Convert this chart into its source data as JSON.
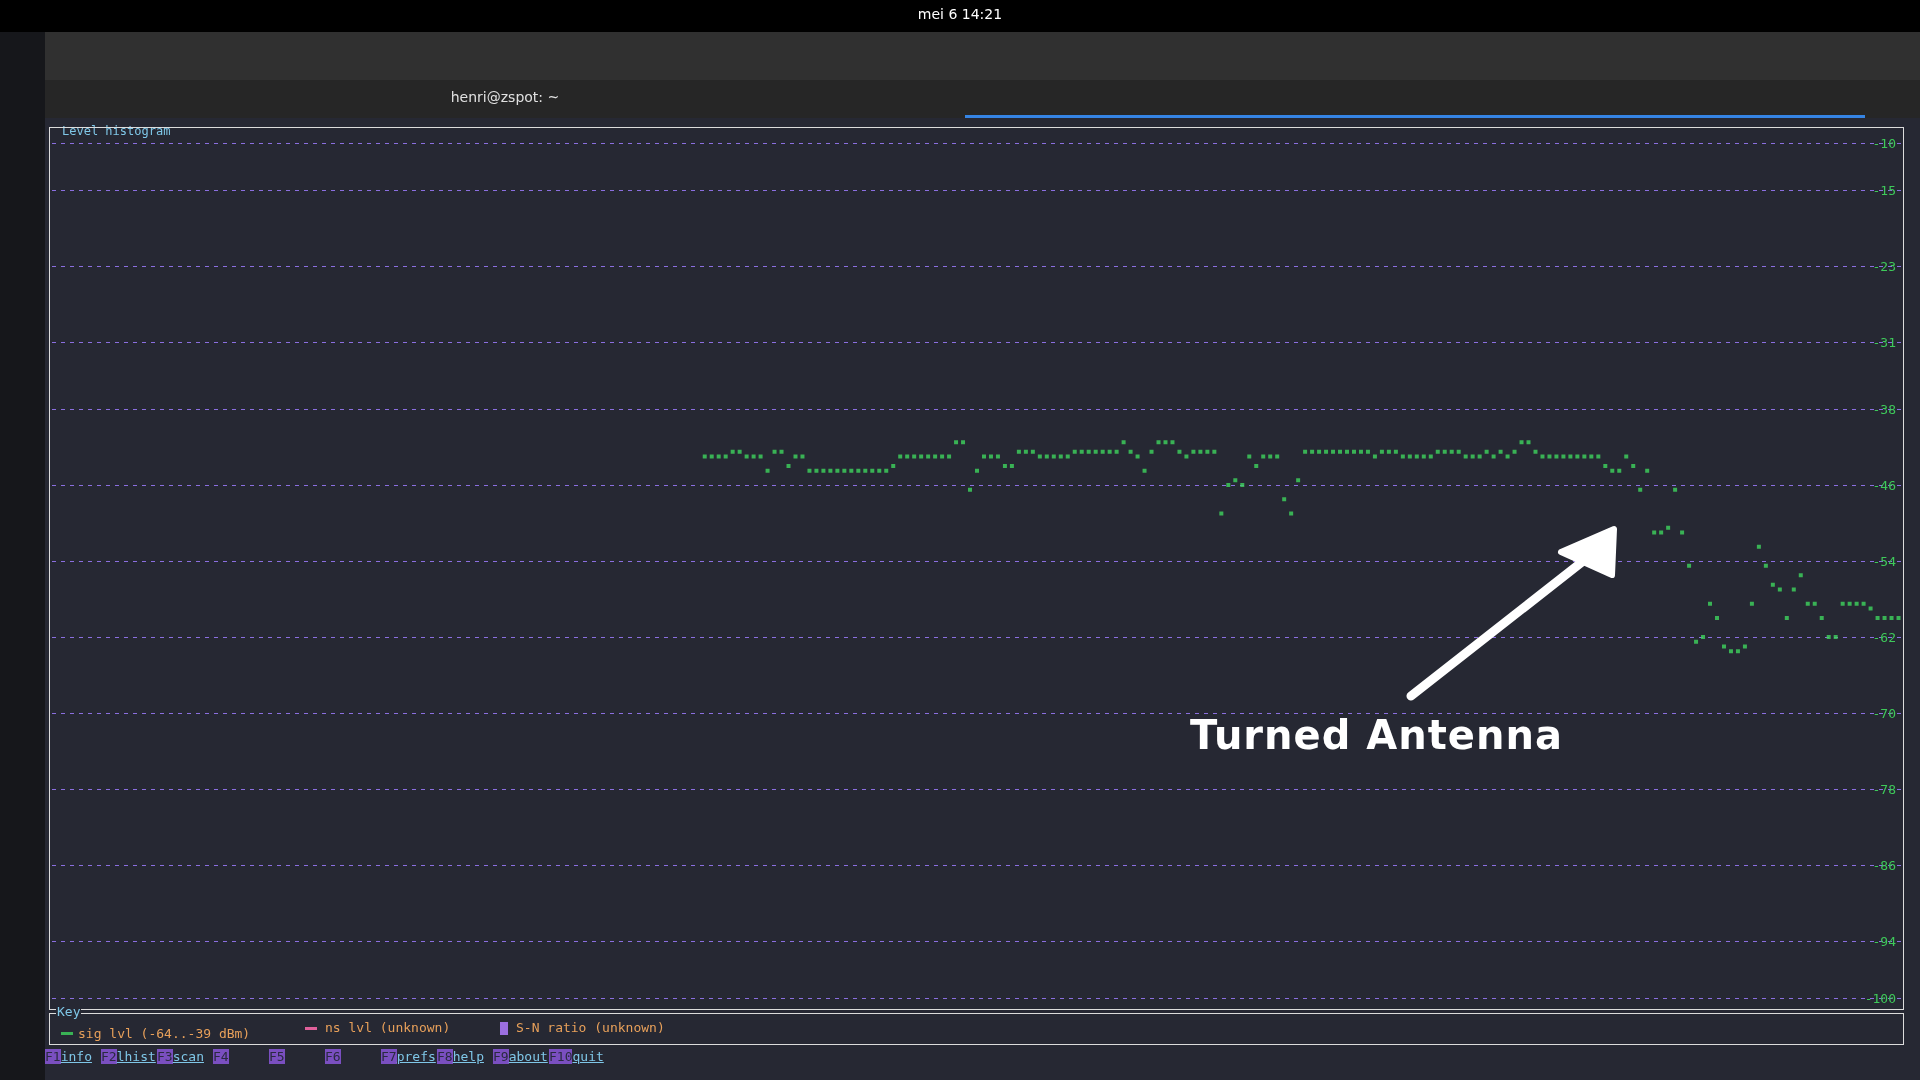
{
  "chart_data": {
    "type": "scatter",
    "title": "Level histogram",
    "marker": "square",
    "categories": [
      null,
      null,
      null,
      null,
      null,
      null,
      null,
      null,
      null,
      null,
      null,
      null,
      null,
      null,
      null,
      null,
      null,
      null,
      null,
      null,
      null,
      null,
      null,
      null,
      null,
      null,
      null,
      null,
      null,
      null,
      null,
      null,
      null,
      null,
      null,
      null,
      null,
      null,
      null,
      null,
      null,
      null,
      null,
      null,
      null,
      null,
      null,
      null,
      null,
      null,
      null,
      null,
      null,
      null,
      null,
      null,
      null,
      null,
      null,
      null,
      null,
      null,
      null,
      null,
      null,
      null,
      null,
      null,
      null,
      null,
      null,
      null,
      null,
      null,
      null,
      null,
      null,
      null,
      null,
      null,
      null,
      null,
      null,
      null,
      null,
      null,
      null,
      null,
      null,
      null,
      null,
      null,
      null,
      null,
      null,
      null,
      null,
      null,
      null,
      null,
      null,
      null,
      null,
      null,
      null,
      null,
      null,
      null,
      null,
      null,
      null,
      null,
      null,
      null,
      null,
      null,
      null,
      null,
      null,
      null,
      null,
      null,
      null,
      null,
      null,
      null,
      null,
      null,
      null,
      null,
      null,
      null,
      null,
      null,
      null,
      null,
      null,
      null,
      null,
      null,
      null,
      null,
      null,
      null,
      null,
      null,
      null,
      null,
      null,
      null,
      null,
      null,
      null,
      null,
      null,
      null,
      null,
      null,
      null,
      null,
      null,
      null,
      null,
      null,
      null,
      null,
      null,
      null,
      null,
      null,
      null,
      null,
      null,
      null,
      null,
      null,
      null,
      null,
      null,
      null,
      null,
      null,
      null,
      null,
      null,
      null,
      null,
      null,
      null,
      null,
      null,
      null,
      null,
      null,
      null,
      null,
      null,
      null,
      null,
      null,
      null,
      null,
      null,
      null,
      null,
      null,
      null,
      null,
      null,
      null,
      null,
      null,
      null,
      null,
      null,
      null,
      null,
      null,
      null,
      null,
      null,
      null,
      null,
      null,
      null,
      null,
      null,
      null,
      null,
      null,
      null,
      null,
      null,
      null,
      null,
      null,
      null,
      null,
      null,
      null,
      null,
      null,
      null,
      null,
      null,
      null,
      null,
      null,
      null,
      null,
      null,
      null,
      null,
      null,
      null,
      null,
      null,
      null,
      null,
      null,
      null,
      null,
      null,
      null,
      null
    ],
    "series": [
      {
        "name": "sig lvl (-64..-39 dBm)",
        "color": "#3ed45e",
        "values": [
          null,
          null,
          null,
          null,
          null,
          null,
          null,
          null,
          null,
          null,
          null,
          null,
          null,
          null,
          null,
          null,
          null,
          null,
          null,
          null,
          null,
          null,
          null,
          null,
          null,
          null,
          null,
          null,
          null,
          null,
          null,
          null,
          null,
          null,
          null,
          null,
          null,
          null,
          null,
          null,
          null,
          null,
          null,
          null,
          null,
          null,
          null,
          null,
          null,
          null,
          null,
          null,
          null,
          null,
          null,
          null,
          null,
          null,
          null,
          null,
          null,
          null,
          null,
          null,
          null,
          null,
          null,
          null,
          null,
          null,
          null,
          null,
          null,
          null,
          null,
          null,
          null,
          null,
          null,
          null,
          null,
          null,
          null,
          null,
          null,
          null,
          null,
          null,
          null,
          null,
          null,
          null,
          null,
          -43,
          -43,
          -43,
          -43,
          -42.5,
          -42.5,
          -43,
          -43,
          -43,
          -44.5,
          -42.5,
          -42.5,
          -44,
          -43,
          -43,
          -44.5,
          -44.5,
          -44.5,
          -44.5,
          -44.5,
          -44.5,
          -44.5,
          -44.5,
          -44.5,
          -44.5,
          -44.5,
          -44.5,
          -44,
          -43,
          -43,
          -43,
          -43,
          -43,
          -43,
          -43,
          -43,
          -41.5,
          -41.5,
          -46.5,
          -44.5,
          -43,
          -43,
          -43,
          -44,
          -44,
          -42.5,
          -42.5,
          -42.5,
          -43,
          -43,
          -43,
          -43,
          -43,
          -42.5,
          -42.5,
          -42.5,
          -42.5,
          -42.5,
          -42.5,
          -42.5,
          -41.5,
          -42.5,
          -43,
          -44.5,
          -42.5,
          -41.5,
          -41.5,
          -41.5,
          -42.5,
          -43,
          -42.5,
          -42.5,
          -42.5,
          -42.5,
          -49,
          -46,
          -45.5,
          -46,
          -43,
          -44,
          -43,
          -43,
          -43,
          -47.5,
          -49,
          -45.5,
          -42.5,
          -42.5,
          -42.5,
          -42.5,
          -42.5,
          -42.5,
          -42.5,
          -42.5,
          -42.5,
          -42.5,
          -43,
          -42.5,
          -42.5,
          -42.5,
          -43,
          -43,
          -43,
          -43,
          -43,
          -42.5,
          -42.5,
          -42.5,
          -42.5,
          -43,
          -43,
          -43,
          -42.5,
          -43,
          -42.5,
          -43,
          -42.5,
          -41.5,
          -41.5,
          -42.5,
          -43,
          -43,
          -43,
          -43,
          -43,
          -43,
          -43,
          -43,
          -43,
          -44,
          -44.5,
          -44.5,
          -43,
          -44,
          -46.5,
          -44.5,
          -51,
          -51,
          -50.5,
          -46.5,
          -51,
          -54.5,
          -62.5,
          -62,
          -58.5,
          -60,
          -63,
          -63.5,
          -63.5,
          -63,
          -58.5,
          -52.5,
          -54.5,
          -56.5,
          -57,
          -60,
          -57,
          -55.5,
          -58.5,
          -58.5,
          -60,
          -62,
          -62,
          -58.5,
          -58.5,
          -58.5,
          -58.5,
          -59,
          -60,
          -60,
          -60,
          -60
        ]
      }
    ],
    "ylim": [
      -100,
      -10
    ],
    "yticks": [
      -10,
      -15,
      -23,
      -31,
      -38,
      -46,
      -54,
      -62,
      -70,
      -78,
      -86,
      -94,
      -100
    ],
    "grid": "y",
    "legend": "bottom",
    "tick_labels": "y",
    "annotations": [
      "Turned Antenna",
      "Key",
      "F1info",
      "F2lhist",
      "F3scan",
      "F4",
      "F5",
      "F6",
      "F7prefs",
      "F8help",
      "F9about",
      "F10quit",
      "mei 6 14:21",
      "henri@zspot: ~",
      "ns lvl (unknown)",
      "S-N ratio (unknown)"
    ]
  }
}
